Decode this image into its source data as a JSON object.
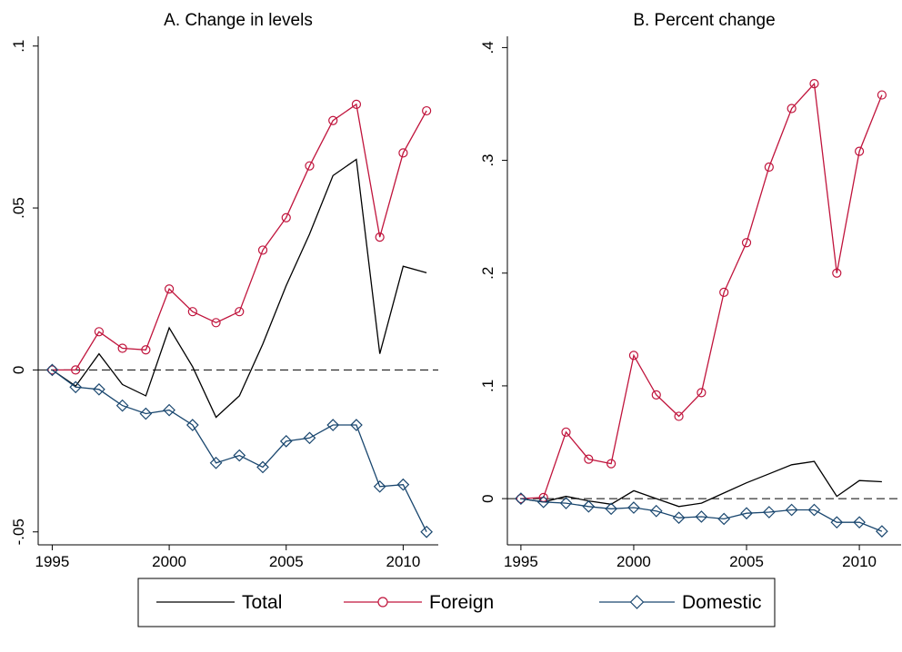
{
  "chart_data": [
    {
      "type": "line",
      "title": "A. Change in levels",
      "x": [
        1995,
        1996,
        1997,
        1998,
        1999,
        2000,
        2001,
        2002,
        2003,
        2004,
        2005,
        2006,
        2007,
        2008,
        2009,
        2010,
        2011
      ],
      "xlim": [
        1994.4,
        2011.5
      ],
      "xticks": [
        1995,
        2000,
        2005,
        2010
      ],
      "ylim": [
        -0.054,
        0.103
      ],
      "yticks": [
        {
          "value": -0.05,
          "label": "-.05"
        },
        0,
        {
          "value": 0.05,
          "label": ".05"
        },
        {
          "value": 0.1,
          "label": ".1"
        }
      ],
      "yline": 0,
      "series": [
        {
          "name": "Total",
          "color": "#000000",
          "values": [
            0,
            -0.005,
            0.005,
            -0.0045,
            -0.008,
            0.013,
            0.001,
            -0.0146,
            -0.008,
            0.008,
            0.026,
            0.042,
            0.06,
            0.065,
            0.005,
            0.032,
            0.03
          ]
        },
        {
          "name": "Foreign",
          "color": "#c0143c",
          "marker": "circle",
          "values": [
            0,
            0,
            0.0118,
            0.0067,
            0.0062,
            0.025,
            0.018,
            0.0146,
            0.018,
            0.037,
            0.047,
            0.063,
            0.077,
            0.082,
            0.041,
            0.067,
            0.08
          ]
        },
        {
          "name": "Domestic",
          "color": "#1a476f",
          "marker": "diamond",
          "values": [
            0,
            -0.0053,
            -0.006,
            -0.011,
            -0.0135,
            -0.0124,
            -0.017,
            -0.0287,
            -0.0264,
            -0.03,
            -0.022,
            -0.021,
            -0.017,
            -0.017,
            -0.036,
            -0.0354,
            -0.05
          ]
        }
      ]
    },
    {
      "type": "line",
      "title": "B. Percent change",
      "x": [
        1995,
        1996,
        1997,
        1998,
        1999,
        2000,
        2001,
        2002,
        2003,
        2004,
        2005,
        2006,
        2007,
        2008,
        2009,
        2010,
        2011
      ],
      "xlim": [
        1994.4,
        2011.85
      ],
      "xticks": [
        1995,
        2000,
        2005,
        2010
      ],
      "ylim": [
        -0.041,
        0.41
      ],
      "yticks": [
        0,
        {
          "value": 0.1,
          "label": ".1"
        },
        {
          "value": 0.2,
          "label": ".2"
        },
        {
          "value": 0.3,
          "label": ".3"
        },
        {
          "value": 0.4,
          "label": ".4"
        }
      ],
      "yline": 0,
      "series": [
        {
          "name": "Total",
          "color": "#000000",
          "values": [
            0,
            -0.003,
            0.002,
            -0.002,
            -0.005,
            0.007,
            0,
            -0.007,
            -0.004,
            0.005,
            0.014,
            0.022,
            0.03,
            0.033,
            0.002,
            0.016,
            0.015
          ]
        },
        {
          "name": "Foreign",
          "color": "#c0143c",
          "marker": "circle",
          "values": [
            0,
            0.001,
            0.059,
            0.035,
            0.031,
            0.127,
            0.092,
            0.073,
            0.094,
            0.183,
            0.227,
            0.294,
            0.346,
            0.368,
            0.2,
            0.308,
            0.358
          ]
        },
        {
          "name": "Domestic",
          "color": "#1a476f",
          "marker": "diamond",
          "values": [
            0,
            -0.003,
            -0.004,
            -0.007,
            -0.009,
            -0.008,
            -0.011,
            -0.017,
            -0.016,
            -0.018,
            -0.013,
            -0.012,
            -0.01,
            -0.01,
            -0.021,
            -0.021,
            -0.029
          ]
        }
      ]
    }
  ]
}
